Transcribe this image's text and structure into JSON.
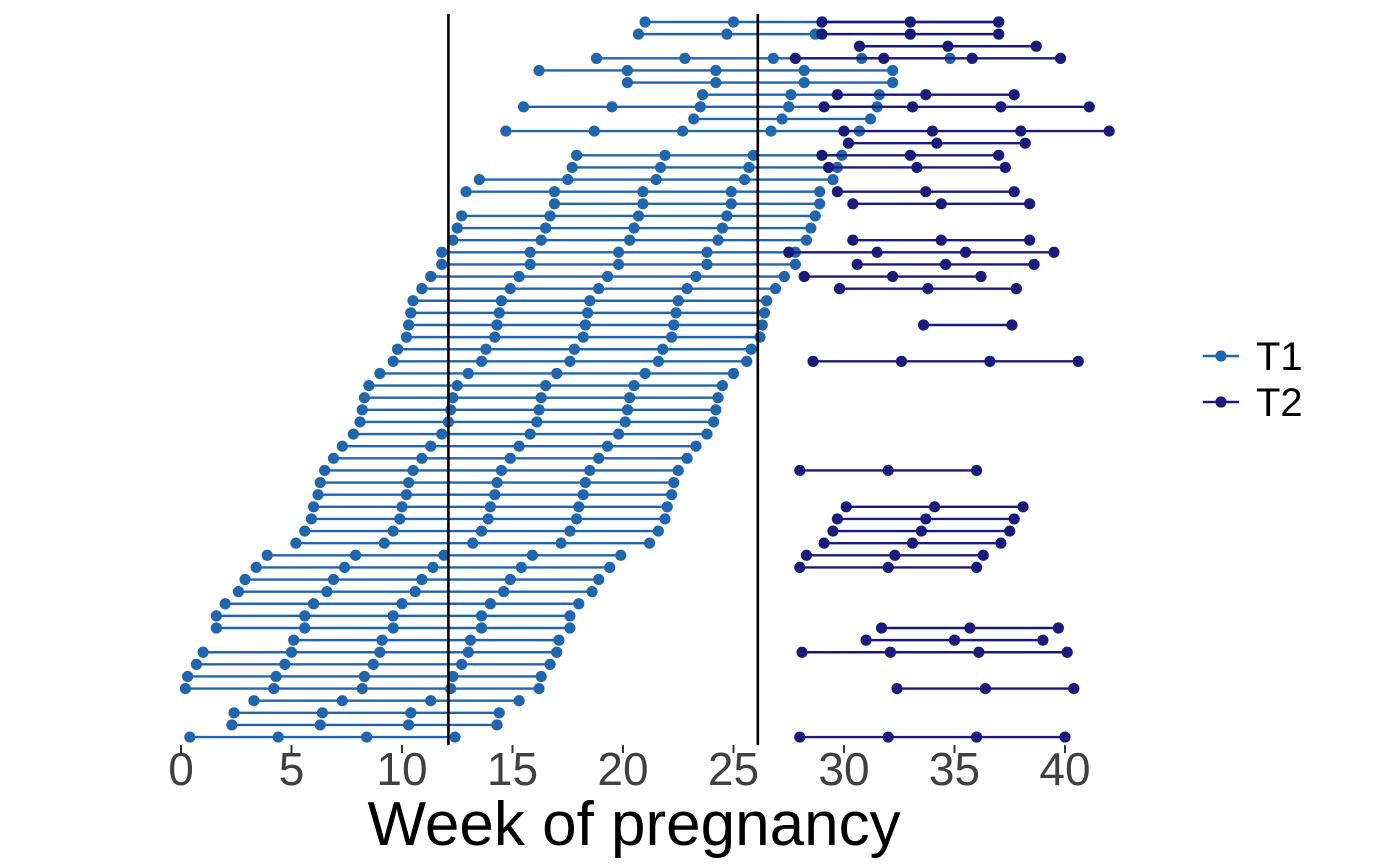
{
  "chart_data": {
    "type": "line",
    "title": "",
    "xlabel": "Week of pregnancy",
    "ylabel": "",
    "xlim": [
      -0.3,
      42.5
    ],
    "xticks": [
      0,
      5,
      10,
      15,
      20,
      25,
      30,
      35,
      40
    ],
    "reference_lines_x": [
      12.1,
      26.1
    ],
    "legend_position": "right",
    "grid": false,
    "colors": {
      "T1": "#2166AC",
      "T2": "#1A1A7A",
      "reference": "#000000"
    },
    "series": [
      {
        "name": "T1",
        "rows": [
          {
            "row": 1,
            "x": [
              21.0,
              25.0,
              29.0,
              33.0,
              37.0
            ]
          },
          {
            "row": 2,
            "x": [
              20.7,
              24.7,
              28.7
            ]
          },
          {
            "row": 4,
            "x": [
              18.8,
              22.8,
              26.8,
              30.8,
              34.8
            ]
          },
          {
            "row": 5,
            "x": [
              16.2,
              20.2,
              24.2,
              28.2,
              32.2
            ]
          },
          {
            "row": 6,
            "x": [
              20.2,
              24.2,
              28.2,
              32.2
            ]
          },
          {
            "row": 7,
            "x": [
              23.6,
              27.6,
              31.6
            ]
          },
          {
            "row": 8,
            "x": [
              15.5,
              19.5,
              23.5,
              27.5,
              31.5
            ]
          },
          {
            "row": 9,
            "x": [
              23.2,
              27.2,
              31.2
            ]
          },
          {
            "row": 10,
            "x": [
              14.7,
              18.7,
              22.7,
              26.7,
              30.7
            ]
          },
          {
            "row": 12,
            "x": [
              17.9,
              21.9,
              25.9,
              29.9
            ]
          },
          {
            "row": 13,
            "x": [
              17.7,
              21.7,
              25.7,
              29.7
            ]
          },
          {
            "row": 14,
            "x": [
              13.5,
              17.5,
              21.5,
              25.5,
              29.5
            ]
          },
          {
            "row": 15,
            "x": [
              12.9,
              16.9,
              20.9,
              24.9,
              28.9
            ]
          },
          {
            "row": 16,
            "x": [
              16.9,
              20.9,
              24.9,
              28.9
            ]
          },
          {
            "row": 17,
            "x": [
              12.7,
              16.7,
              20.7,
              24.7,
              28.7
            ]
          },
          {
            "row": 18,
            "x": [
              12.5,
              16.5,
              20.5,
              24.5,
              28.5
            ]
          },
          {
            "row": 19,
            "x": [
              12.3,
              16.3,
              20.3,
              24.3,
              28.3
            ]
          },
          {
            "row": 20,
            "x": [
              11.8,
              15.8,
              19.8,
              23.8,
              27.8
            ]
          },
          {
            "row": 21,
            "x": [
              11.8,
              15.8,
              19.8,
              23.8,
              27.8
            ]
          },
          {
            "row": 22,
            "x": [
              11.3,
              15.3,
              19.3,
              23.3,
              27.3
            ]
          },
          {
            "row": 23,
            "x": [
              10.9,
              14.9,
              18.9,
              22.9,
              26.9
            ]
          },
          {
            "row": 24,
            "x": [
              10.5,
              14.5,
              18.5,
              22.5,
              26.5
            ]
          },
          {
            "row": 25,
            "x": [
              10.4,
              14.4,
              18.4,
              22.4,
              26.4
            ]
          },
          {
            "row": 26,
            "x": [
              10.3,
              14.3,
              18.3,
              22.3,
              26.3
            ]
          },
          {
            "row": 27,
            "x": [
              10.2,
              14.2,
              18.2,
              22.2,
              26.2
            ]
          },
          {
            "row": 28,
            "x": [
              9.8,
              13.8,
              17.8,
              21.8,
              25.8
            ]
          },
          {
            "row": 29,
            "x": [
              9.6,
              13.6,
              17.6,
              21.6,
              25.6
            ]
          },
          {
            "row": 30,
            "x": [
              9.0,
              13.0,
              17.0,
              21.0,
              25.0
            ]
          },
          {
            "row": 31,
            "x": [
              8.5,
              12.5,
              16.5,
              20.5,
              24.5
            ]
          },
          {
            "row": 32,
            "x": [
              8.3,
              12.3,
              16.3,
              20.3,
              24.3
            ]
          },
          {
            "row": 33,
            "x": [
              8.2,
              12.2,
              16.2,
              20.2,
              24.2
            ]
          },
          {
            "row": 34,
            "x": [
              8.1,
              12.1,
              16.1,
              20.1,
              24.1
            ]
          },
          {
            "row": 35,
            "x": [
              7.8,
              11.8,
              15.8,
              19.8,
              23.8
            ]
          },
          {
            "row": 36,
            "x": [
              7.3,
              11.3,
              15.3,
              19.3,
              23.3
            ]
          },
          {
            "row": 37,
            "x": [
              6.9,
              10.9,
              14.9,
              18.9,
              22.9
            ]
          },
          {
            "row": 38,
            "x": [
              6.5,
              10.5,
              14.5,
              18.5,
              22.5
            ]
          },
          {
            "row": 39,
            "x": [
              6.3,
              10.3,
              14.3,
              18.3,
              22.3
            ]
          },
          {
            "row": 40,
            "x": [
              6.2,
              10.2,
              14.2,
              18.2,
              22.2
            ]
          },
          {
            "row": 41,
            "x": [
              6.0,
              10.0,
              14.0,
              18.0,
              22.0
            ]
          },
          {
            "row": 42,
            "x": [
              5.9,
              9.9,
              13.9,
              17.9,
              21.9
            ]
          },
          {
            "row": 43,
            "x": [
              5.6,
              9.6,
              13.6,
              17.6,
              21.6
            ]
          },
          {
            "row": 44,
            "x": [
              5.2,
              9.2,
              13.2,
              17.2,
              21.2
            ]
          },
          {
            "row": 45,
            "x": [
              3.9,
              7.9,
              11.9,
              15.9,
              19.9
            ]
          },
          {
            "row": 46,
            "x": [
              3.4,
              7.4,
              11.4,
              15.4,
              19.4
            ]
          },
          {
            "row": 47,
            "x": [
              2.9,
              6.9,
              10.9,
              14.9,
              18.9
            ]
          },
          {
            "row": 48,
            "x": [
              2.6,
              6.6,
              10.6,
              14.6,
              18.6
            ]
          },
          {
            "row": 49,
            "x": [
              2.0,
              6.0,
              10.0,
              14.0,
              18.0
            ]
          },
          {
            "row": 50,
            "x": [
              1.6,
              5.6,
              9.6,
              13.6,
              17.6
            ]
          },
          {
            "row": 51,
            "x": [
              1.6,
              5.6,
              9.6,
              13.6,
              17.6
            ]
          },
          {
            "row": 52,
            "x": [
              5.1,
              9.1,
              13.1,
              17.1
            ]
          },
          {
            "row": 53,
            "x": [
              1.0,
              5.0,
              9.0,
              13.0,
              17.0
            ]
          },
          {
            "row": 54,
            "x": [
              0.7,
              4.7,
              8.7,
              12.7,
              16.7
            ]
          },
          {
            "row": 55,
            "x": [
              0.3,
              4.3,
              8.3,
              12.3,
              16.3
            ]
          },
          {
            "row": 56,
            "x": [
              0.2,
              4.2,
              8.2,
              12.2,
              16.2
            ]
          },
          {
            "row": 57,
            "x": [
              3.3,
              7.3,
              11.3,
              15.3
            ]
          },
          {
            "row": 58,
            "x": [
              2.4,
              6.4,
              10.4,
              14.4
            ]
          },
          {
            "row": 59,
            "x": [
              2.3,
              6.3,
              10.3,
              14.3
            ]
          },
          {
            "row": 60,
            "x": [
              0.4,
              4.4,
              8.4,
              12.4
            ]
          }
        ]
      },
      {
        "name": "T2",
        "rows": [
          {
            "row": 1,
            "x": [
              29.0,
              33.0,
              37.0
            ]
          },
          {
            "row": 2,
            "x": [
              29.0,
              33.0,
              37.0
            ]
          },
          {
            "row": 3,
            "x": [
              30.7,
              34.7,
              38.7
            ]
          },
          {
            "row": 4,
            "x": [
              27.8,
              31.8,
              35.8,
              39.8
            ]
          },
          {
            "row": 7,
            "x": [
              29.7,
              33.7,
              37.7
            ]
          },
          {
            "row": 8,
            "x": [
              29.1,
              33.1,
              37.1,
              41.1
            ]
          },
          {
            "row": 10,
            "x": [
              30.0,
              34.0,
              38.0,
              42.0
            ]
          },
          {
            "row": 11,
            "x": [
              30.2,
              34.2,
              38.2
            ]
          },
          {
            "row": 12,
            "x": [
              29.0,
              33.0,
              37.0
            ]
          },
          {
            "row": 13,
            "x": [
              29.3,
              33.3,
              37.3
            ]
          },
          {
            "row": 15,
            "x": [
              29.7,
              33.7,
              37.7
            ]
          },
          {
            "row": 16,
            "x": [
              30.4,
              34.4,
              38.4
            ]
          },
          {
            "row": 19,
            "x": [
              30.4,
              34.4,
              38.4
            ]
          },
          {
            "row": 20,
            "x": [
              27.5,
              31.5,
              35.5,
              39.5
            ]
          },
          {
            "row": 21,
            "x": [
              30.6,
              34.6,
              38.6
            ]
          },
          {
            "row": 22,
            "x": [
              28.2,
              32.2,
              36.2
            ]
          },
          {
            "row": 23,
            "x": [
              29.8,
              33.8,
              37.8
            ]
          },
          {
            "row": 26,
            "x": [
              33.6,
              37.6
            ]
          },
          {
            "row": 29,
            "x": [
              28.6,
              32.6,
              36.6,
              40.6
            ]
          },
          {
            "row": 38,
            "x": [
              28.0,
              32.0,
              36.0
            ]
          },
          {
            "row": 41,
            "x": [
              30.1,
              34.1,
              38.1
            ]
          },
          {
            "row": 42,
            "x": [
              29.7,
              33.7,
              37.7
            ]
          },
          {
            "row": 43,
            "x": [
              29.5,
              33.5,
              37.5
            ]
          },
          {
            "row": 44,
            "x": [
              29.1,
              33.1,
              37.1
            ]
          },
          {
            "row": 45,
            "x": [
              28.3,
              32.3,
              36.3
            ]
          },
          {
            "row": 46,
            "x": [
              28.0,
              32.0,
              36.0
            ]
          },
          {
            "row": 51,
            "x": [
              31.7,
              35.7,
              39.7
            ]
          },
          {
            "row": 52,
            "x": [
              31.0,
              35.0,
              39.0
            ]
          },
          {
            "row": 53,
            "x": [
              28.1,
              32.1,
              36.1,
              40.1
            ]
          },
          {
            "row": 56,
            "x": [
              32.4,
              36.4,
              40.4
            ]
          },
          {
            "row": 60,
            "x": [
              28.0,
              32.0,
              36.0,
              40.0
            ]
          }
        ]
      }
    ]
  }
}
